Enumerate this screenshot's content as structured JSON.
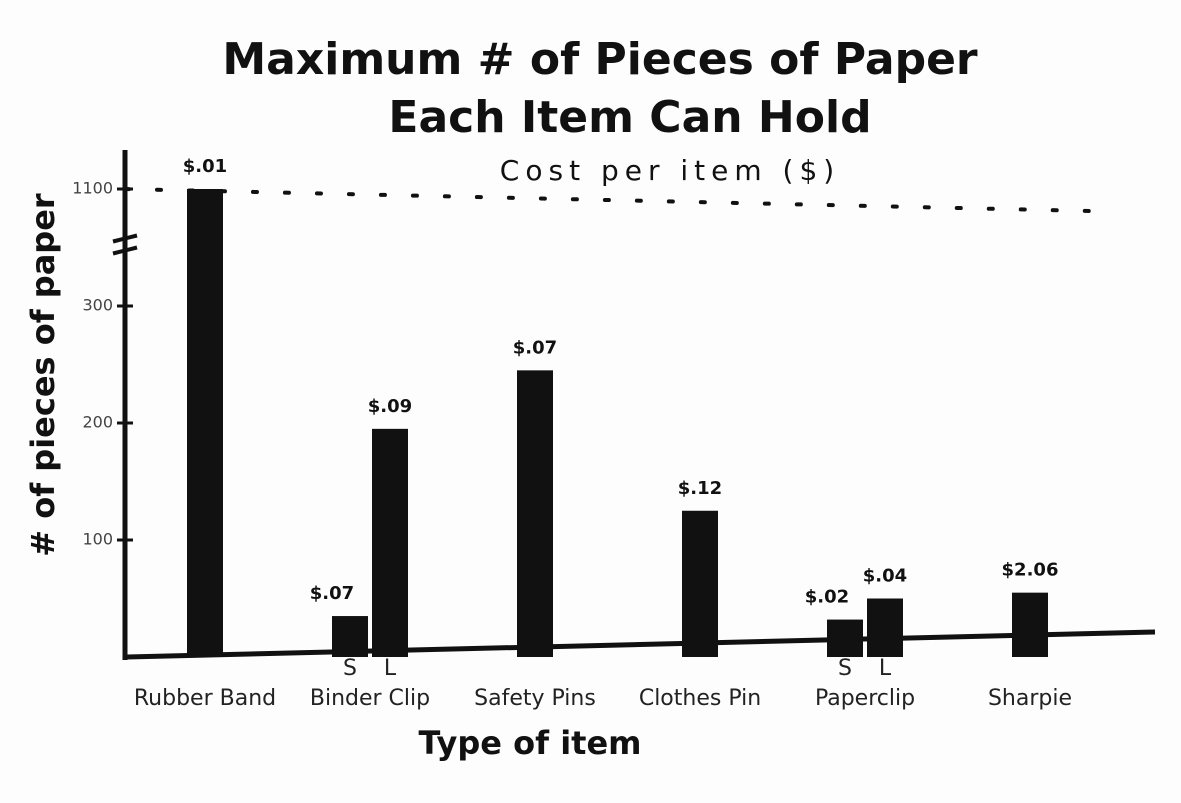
{
  "chart_data": {
    "type": "bar",
    "title": [
      "Maximum # of Pieces of Paper",
      "Each Item Can Hold"
    ],
    "subtitle": "Cost per item ($)",
    "x_label": "Type of item",
    "y_label": "# of pieces of paper",
    "categories": [
      "Rubber Band",
      "Binder Clip",
      "Safety Pins",
      "Clothes Pin",
      "Paperclip",
      "Sharpie"
    ],
    "sub_labels": [
      null,
      [
        "S",
        "L"
      ],
      null,
      null,
      [
        "S",
        "L"
      ],
      null
    ],
    "values": [
      [
        1100
      ],
      [
        35,
        195
      ],
      [
        245
      ],
      [
        125
      ],
      [
        32,
        50
      ],
      [
        55
      ]
    ],
    "cost_labels": [
      [
        "$.01"
      ],
      [
        "$.07",
        "$.09"
      ],
      [
        "$.07"
      ],
      [
        "$.12"
      ],
      [
        "$.02",
        "$.04"
      ],
      [
        "$2.06"
      ]
    ],
    "color": "#111111",
    "ylim": [
      0,
      1100
    ],
    "yticks": [
      100,
      200,
      300,
      1100
    ],
    "axis_break": true,
    "dotted_line_at_top_tick": true
  }
}
